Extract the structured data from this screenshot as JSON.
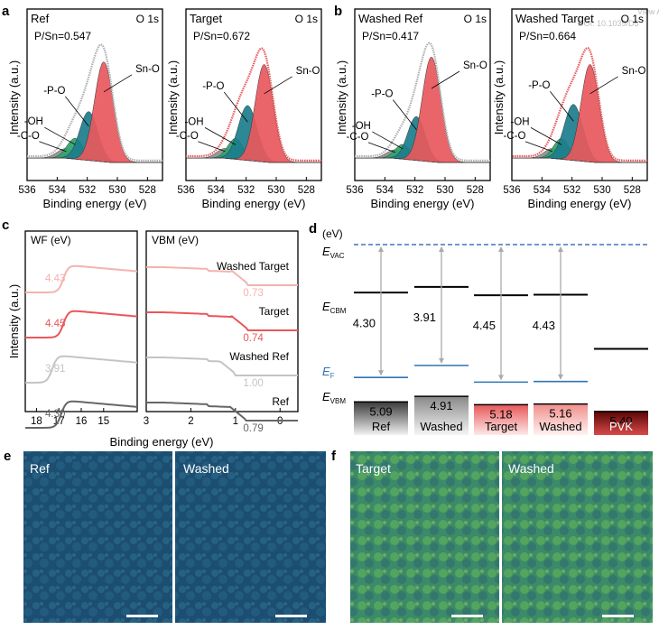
{
  "corner_text": {
    "line1": "View A",
    "line2": "DOI: 10.1039/D5"
  },
  "panel_letters": [
    "a",
    "b",
    "c",
    "d",
    "e",
    "f"
  ],
  "xps": {
    "x_axis_label": "Binding energy (eV)",
    "y_axis_label": "Intensity (a.u.)",
    "tick_labels": [
      "536",
      "534",
      "532",
      "530",
      "528"
    ]
  },
  "chart_data": [
    {
      "type": "area",
      "panel": "a",
      "sample": "Ref",
      "title": "O 1s",
      "ratio": "P/Sn=0.547",
      "xlim": [
        527,
        536
      ],
      "x_reversed": true,
      "series": [
        {
          "name": "Sn-O",
          "color": "#e8585c",
          "center": 530.9,
          "height": 0.82,
          "sigma": 0.62
        },
        {
          "name": "-P-O",
          "color": "#1b7d8c",
          "center": 531.9,
          "height": 0.4,
          "sigma": 0.6
        },
        {
          "name": "-OH",
          "color": "#2ca36b",
          "center": 532.8,
          "height": 0.17,
          "sigma": 0.55
        },
        {
          "name": "-C-O",
          "color": "#8f8f8f",
          "center": 533.4,
          "height": 0.08,
          "sigma": 0.6
        }
      ]
    },
    {
      "type": "area",
      "panel": "a",
      "sample": "Target",
      "title": "O 1s",
      "ratio": "P/Sn=0.672",
      "xlim": [
        527,
        536
      ],
      "x_reversed": true,
      "series": [
        {
          "name": "Sn-O",
          "color": "#e8585c",
          "center": 530.8,
          "height": 0.8,
          "sigma": 0.6
        },
        {
          "name": "-P-O",
          "color": "#1b7d8c",
          "center": 531.9,
          "height": 0.45,
          "sigma": 0.62
        },
        {
          "name": "-OH",
          "color": "#2ca36b",
          "center": 532.7,
          "height": 0.17,
          "sigma": 0.52
        },
        {
          "name": "-C-O",
          "color": "#8f8f8f",
          "center": 533.4,
          "height": 0.08,
          "sigma": 0.55
        }
      ]
    },
    {
      "type": "area",
      "panel": "b",
      "sample": "Washed Ref",
      "title": "O 1s",
      "ratio": "P/Sn=0.417",
      "xlim": [
        527,
        536
      ],
      "x_reversed": true,
      "series": [
        {
          "name": "Sn-O",
          "color": "#e8585c",
          "center": 530.9,
          "height": 0.86,
          "sigma": 0.62
        },
        {
          "name": "-P-O",
          "color": "#1b7d8c",
          "center": 531.9,
          "height": 0.36,
          "sigma": 0.58
        },
        {
          "name": "-OH",
          "color": "#2ca36b",
          "center": 532.8,
          "height": 0.12,
          "sigma": 0.52
        },
        {
          "name": "-C-O",
          "color": "#8f8f8f",
          "center": 533.3,
          "height": 0.07,
          "sigma": 0.58
        }
      ]
    },
    {
      "type": "area",
      "panel": "b",
      "sample": "Washed Target",
      "title": "O 1s",
      "ratio": "P/Sn=0.664",
      "xlim": [
        527,
        536
      ],
      "x_reversed": true,
      "series": [
        {
          "name": "Sn-O",
          "color": "#e8585c",
          "center": 530.8,
          "height": 0.8,
          "sigma": 0.6
        },
        {
          "name": "-P-O",
          "color": "#1b7d8c",
          "center": 531.9,
          "height": 0.46,
          "sigma": 0.62
        },
        {
          "name": "-OH",
          "color": "#2ca36b",
          "center": 532.7,
          "height": 0.17,
          "sigma": 0.52
        },
        {
          "name": "-C-O",
          "color": "#8f8f8f",
          "center": 533.3,
          "height": 0.08,
          "sigma": 0.55
        }
      ]
    },
    {
      "type": "line",
      "panel": "c",
      "x_axis_label": "Binding energy (eV)",
      "y_axis_label": "Intensity (a.u.)",
      "left_title": "WF (eV)",
      "right_title": "VBM (eV)",
      "left_xlim": [
        18.5,
        13.5
      ],
      "left_ticks": [
        "18",
        "17",
        "16",
        "15"
      ],
      "right_xlim": [
        3,
        -0.4
      ],
      "right_ticks": [
        "3",
        "2",
        "1",
        "0"
      ],
      "series": [
        {
          "name": "Washed Target",
          "color": "#f4b3ae",
          "wf": "4.43",
          "vbm": "0.73",
          "wf_edge": 16.8,
          "vbm_edge": 0.73
        },
        {
          "name": "Target",
          "color": "#e8575a",
          "wf": "4.45",
          "vbm": "0.74",
          "wf_edge": 16.8,
          "vbm_edge": 0.74
        },
        {
          "name": "Washed Ref",
          "color": "#c4c4c4",
          "wf": "3.91",
          "vbm": "1.00",
          "wf_edge": 17.3,
          "vbm_edge": 1.0
        },
        {
          "name": "Ref",
          "color": "#666666",
          "wf": "4.30",
          "vbm": "0.79",
          "wf_edge": 16.9,
          "vbm_edge": 0.79
        }
      ]
    },
    {
      "type": "bar",
      "panel": "d",
      "unit": "(eV)",
      "vac_label": "E",
      "vac_sub": "VAC",
      "cbm_label": "E",
      "cbm_sub": "CBM",
      "fermi_label": "E",
      "fermi_sub": "F",
      "vbm_label": "E",
      "vbm_sub": "VBM",
      "ylim": [
        0,
        5.6
      ],
      "categories": [
        "Ref",
        "Washed",
        "Target",
        "Washed",
        "PVK"
      ],
      "vbm_values": [
        5.09,
        4.91,
        5.18,
        5.16,
        5.4
      ],
      "vbm_texts": [
        "5.09",
        "4.91",
        "5.18",
        "5.16",
        "5.40"
      ],
      "cbm_values": [
        1.55,
        1.37,
        1.64,
        1.62,
        null
      ],
      "wf_values": [
        4.3,
        3.91,
        4.45,
        4.43,
        null
      ],
      "wf_texts": [
        "4.30",
        "3.91",
        "4.45",
        "4.43",
        ""
      ],
      "pvk_level": 3.9,
      "bar_colors": [
        "#555555",
        "#a8a8a8",
        "#e8575a",
        "#f4b3ae",
        "#7a0f0f"
      ],
      "vac_color": "#4472c4",
      "fermi_color": "#2e75b6"
    }
  ],
  "afm": {
    "e_labels": [
      "Ref",
      "Washed"
    ],
    "f_labels": [
      "Target",
      "Washed"
    ]
  }
}
